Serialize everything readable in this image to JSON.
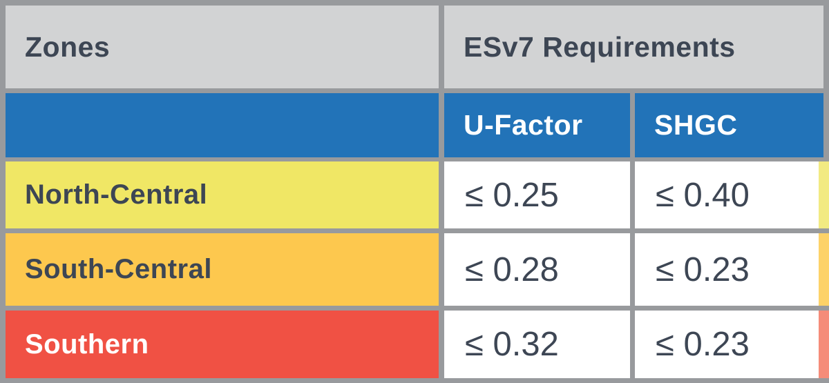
{
  "chart_data": {
    "type": "table",
    "title": "",
    "header_groups": [
      {
        "label": "Zones",
        "span": 1
      },
      {
        "label": "ESv7 Requirements",
        "span": 2
      }
    ],
    "columns": [
      "Zones",
      "U-Factor",
      "SHGC"
    ],
    "rows": [
      [
        "North-Central",
        "≤ 0.25",
        "≤ 0.40"
      ],
      [
        "South-Central",
        "≤ 0.28",
        "≤ 0.23"
      ],
      [
        "Southern",
        "≤ 0.32",
        "≤ 0.23"
      ]
    ]
  },
  "table": {
    "header": {
      "zones": "Zones",
      "requirements": "ESv7 Requirements"
    },
    "subheader": {
      "u_factor": "U-Factor",
      "shgc": "SHGC"
    },
    "rows": [
      {
        "zone": "North-Central",
        "u_factor": "≤ 0.25",
        "shgc": "≤ 0.40",
        "row_color": "#f0e765",
        "strip_color": "#f2ea82",
        "label_color": "#3d4654"
      },
      {
        "zone": "South-Central",
        "u_factor": "≤ 0.28",
        "shgc": "≤ 0.23",
        "row_color": "#fdc84e",
        "strip_color": "#fdd268",
        "label_color": "#3d4654"
      },
      {
        "zone": "Southern",
        "u_factor": "≤ 0.32",
        "shgc": "≤ 0.23",
        "row_color": "#f05144",
        "strip_color": "#f58c79",
        "label_color": "#ffffff"
      }
    ],
    "colors": {
      "header_bg": "#d2d3d4",
      "subheader_bg": "#2273b8",
      "border": "#989a9d",
      "text_dark": "#3d4654",
      "text_white": "#ffffff",
      "value_cell_bg": "#ffffff"
    }
  }
}
